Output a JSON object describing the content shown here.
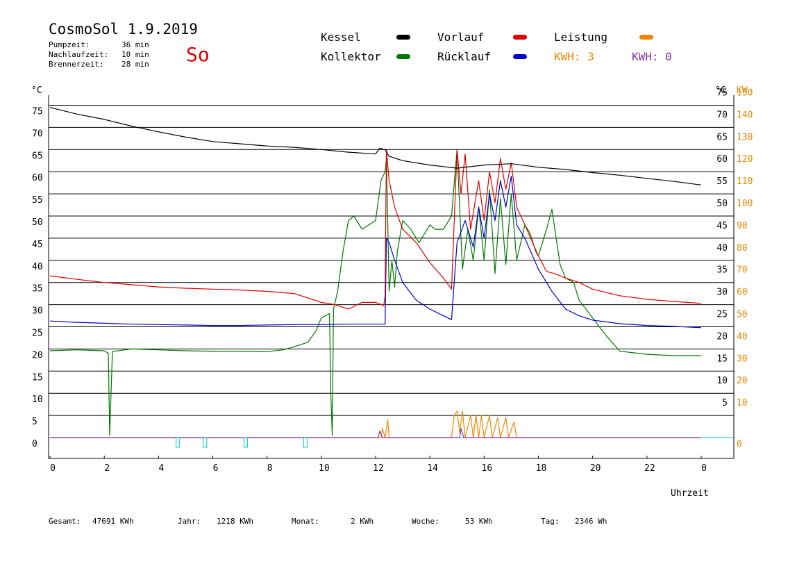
{
  "header": {
    "title": "CosmoSol 1.9.2019",
    "day": "So",
    "stats": [
      {
        "label": "Pumpzeit:",
        "value": "36 min"
      },
      {
        "label": "Nachlaufzeit:",
        "value": "10 min"
      },
      {
        "label": "Brennerzeit:",
        "value": "28 min"
      }
    ]
  },
  "legend": {
    "kessel": "Kessel",
    "kollektor": "Kollektor",
    "vorlauf": "Vorlauf",
    "ruecklauf": "Rücklauf",
    "leistung": "Leistung",
    "kwh1": "KWH: 3",
    "kwh2": "KWH: 0"
  },
  "footer": {
    "gesamt_label": "Gesamt:",
    "gesamt_value": "47691 KWh",
    "jahr_label": "Jahr:",
    "jahr_value": "1218 KWh",
    "monat_label": "Monat:",
    "monat_value": "2 KWh",
    "woche_label": "Woche:",
    "woche_value": "53 KWh",
    "tag_label": "Tag:",
    "tag_value": "2346 Wh"
  },
  "colors": {
    "kessel": "#000000",
    "kollektor": "#007700",
    "vorlauf": "#dd0000",
    "ruecklauf": "#0000cc",
    "leistung": "#ee8800",
    "kwh2": "#8833aa",
    "baseline": "#00cccc"
  },
  "chart_data": {
    "type": "line",
    "xlabel": "Uhrzeit",
    "ylabel_left": "°C",
    "ylabel_right_c": "°C",
    "ylabel_right_kw": "KW",
    "xlim": [
      0,
      24
    ],
    "ylim": [
      -5,
      80
    ],
    "x_ticks": [
      "0",
      "2",
      "4",
      "6",
      "8",
      "10",
      "12",
      "14",
      "16",
      "18",
      "20",
      "22",
      "0"
    ],
    "y_ticks_left": [
      "0",
      "5",
      "10",
      "15",
      "20",
      "25",
      "30",
      "35",
      "40",
      "45",
      "50",
      "55",
      "60",
      "65",
      "70",
      "75"
    ],
    "y_ticks_right_c": [
      "5",
      "10",
      "15",
      "20",
      "25",
      "30",
      "35",
      "40",
      "45",
      "50",
      "55",
      "60",
      "65",
      "70",
      "75"
    ],
    "y_ticks_right_kw": [
      "0",
      "10",
      "20",
      "30",
      "40",
      "50",
      "60",
      "70",
      "80",
      "90",
      "100",
      "110",
      "120",
      "130",
      "140",
      "150"
    ],
    "series": [
      {
        "name": "Kessel",
        "points": [
          [
            0,
            74.5
          ],
          [
            1,
            73
          ],
          [
            2,
            71.8
          ],
          [
            3,
            70.3
          ],
          [
            4,
            69
          ],
          [
            5,
            67.8
          ],
          [
            6,
            66.8
          ],
          [
            7,
            66.3
          ],
          [
            8,
            65.8
          ],
          [
            9,
            65.5
          ],
          [
            10,
            65
          ],
          [
            11,
            64.4
          ],
          [
            12,
            64
          ],
          [
            12.15,
            65.3
          ],
          [
            12.35,
            65
          ],
          [
            12.5,
            63.5
          ],
          [
            13,
            62.5
          ],
          [
            14,
            61.5
          ],
          [
            15,
            60.8
          ],
          [
            16,
            61.5
          ],
          [
            17,
            61.8
          ],
          [
            18,
            61
          ],
          [
            19,
            60.5
          ],
          [
            20,
            59.8
          ],
          [
            21,
            59.2
          ],
          [
            22,
            58.5
          ],
          [
            23,
            57.8
          ],
          [
            24,
            57
          ]
        ]
      },
      {
        "name": "Kollektor",
        "points": [
          [
            0,
            19.6
          ],
          [
            1,
            19.8
          ],
          [
            2,
            19.6
          ],
          [
            2.15,
            19
          ],
          [
            2.2,
            0.5
          ],
          [
            2.3,
            19.4
          ],
          [
            3,
            20
          ],
          [
            4,
            19.8
          ],
          [
            5,
            19.6
          ],
          [
            6,
            19.5
          ],
          [
            7,
            19.5
          ],
          [
            8,
            19.4
          ],
          [
            8.6,
            19.8
          ],
          [
            9,
            20.5
          ],
          [
            9.5,
            21.5
          ],
          [
            9.8,
            24
          ],
          [
            10,
            27
          ],
          [
            10.3,
            28
          ],
          [
            10.35,
            10
          ],
          [
            10.4,
            0.5
          ],
          [
            10.45,
            29
          ],
          [
            10.6,
            33
          ],
          [
            10.8,
            42
          ],
          [
            11,
            49
          ],
          [
            11.2,
            50
          ],
          [
            11.5,
            47
          ],
          [
            12,
            49
          ],
          [
            12.2,
            58
          ],
          [
            12.35,
            60
          ],
          [
            12.4,
            63
          ],
          [
            12.45,
            48
          ],
          [
            12.5,
            33
          ],
          [
            12.6,
            40
          ],
          [
            12.7,
            34
          ],
          [
            12.8,
            42
          ],
          [
            13,
            49
          ],
          [
            13.3,
            47
          ],
          [
            13.6,
            44
          ],
          [
            14,
            48
          ],
          [
            14.2,
            47
          ],
          [
            14.5,
            47
          ],
          [
            14.8,
            50
          ],
          [
            15,
            65
          ],
          [
            15.2,
            38
          ],
          [
            15.4,
            47
          ],
          [
            15.6,
            40
          ],
          [
            15.8,
            52
          ],
          [
            16,
            40
          ],
          [
            16.2,
            56
          ],
          [
            16.4,
            37
          ],
          [
            16.6,
            54
          ],
          [
            16.8,
            39
          ],
          [
            17,
            55
          ],
          [
            17.2,
            40
          ],
          [
            17.5,
            48
          ],
          [
            17.7,
            46
          ],
          [
            17.9,
            42
          ],
          [
            18,
            41
          ],
          [
            18.3,
            47
          ],
          [
            18.5,
            51.5
          ],
          [
            18.8,
            39
          ],
          [
            19,
            36
          ],
          [
            19.3,
            35
          ],
          [
            19.5,
            31
          ],
          [
            20,
            27
          ],
          [
            20.5,
            23
          ],
          [
            21,
            19.5
          ],
          [
            22,
            18.8
          ],
          [
            23,
            18.5
          ],
          [
            24,
            18.5
          ]
        ]
      },
      {
        "name": "Vorlauf",
        "points": [
          [
            0,
            36.5
          ],
          [
            1,
            35.7
          ],
          [
            2,
            35
          ],
          [
            3,
            34.5
          ],
          [
            4,
            34
          ],
          [
            5,
            33.7
          ],
          [
            6,
            33.5
          ],
          [
            7,
            33.3
          ],
          [
            8,
            33
          ],
          [
            9,
            32.5
          ],
          [
            9.5,
            31.5
          ],
          [
            10,
            30.5
          ],
          [
            10.5,
            30
          ],
          [
            11,
            29
          ],
          [
            11.5,
            30.5
          ],
          [
            12,
            30.5
          ],
          [
            12.3,
            29.8
          ],
          [
            12.35,
            32
          ],
          [
            12.4,
            65
          ],
          [
            12.5,
            58
          ],
          [
            12.7,
            52
          ],
          [
            13,
            47
          ],
          [
            13.5,
            44
          ],
          [
            14,
            39.5
          ],
          [
            14.5,
            36
          ],
          [
            14.8,
            33.5
          ],
          [
            15,
            65
          ],
          [
            15.15,
            55
          ],
          [
            15.3,
            64
          ],
          [
            15.5,
            47
          ],
          [
            15.8,
            58
          ],
          [
            16,
            49
          ],
          [
            16.2,
            60
          ],
          [
            16.4,
            53
          ],
          [
            16.6,
            63
          ],
          [
            16.8,
            56
          ],
          [
            17,
            62
          ],
          [
            17.2,
            52
          ],
          [
            17.5,
            48
          ],
          [
            18,
            41
          ],
          [
            18.3,
            37.5
          ],
          [
            18.6,
            37
          ],
          [
            19,
            36
          ],
          [
            19.5,
            35
          ],
          [
            20,
            33.5
          ],
          [
            21,
            32
          ],
          [
            22,
            31.2
          ],
          [
            23,
            30.7
          ],
          [
            24,
            30.3
          ]
        ]
      },
      {
        "name": "Rücklauf",
        "points": [
          [
            0,
            26.3
          ],
          [
            1,
            26
          ],
          [
            2,
            25.8
          ],
          [
            3,
            25.6
          ],
          [
            4,
            25.5
          ],
          [
            5,
            25.4
          ],
          [
            6,
            25.3
          ],
          [
            7,
            25.3
          ],
          [
            8,
            25.4
          ],
          [
            9,
            25.5
          ],
          [
            10,
            25.5
          ],
          [
            11,
            25.6
          ],
          [
            12,
            25.6
          ],
          [
            12.35,
            25.6
          ],
          [
            12.4,
            45
          ],
          [
            12.5,
            44
          ],
          [
            12.7,
            40
          ],
          [
            13,
            35
          ],
          [
            13.5,
            31
          ],
          [
            14,
            29
          ],
          [
            14.5,
            27.5
          ],
          [
            14.8,
            26.6
          ],
          [
            15,
            44
          ],
          [
            15.3,
            49
          ],
          [
            15.6,
            43
          ],
          [
            15.8,
            52
          ],
          [
            16,
            45
          ],
          [
            16.2,
            55
          ],
          [
            16.4,
            49
          ],
          [
            16.6,
            58
          ],
          [
            16.8,
            52
          ],
          [
            17,
            59
          ],
          [
            17.2,
            48
          ],
          [
            17.5,
            45
          ],
          [
            18,
            38
          ],
          [
            18.5,
            33
          ],
          [
            19,
            29
          ],
          [
            19.5,
            27.5
          ],
          [
            20,
            26.5
          ],
          [
            21,
            25.7
          ],
          [
            22,
            25.3
          ],
          [
            23,
            25.1
          ],
          [
            24,
            24.8
          ]
        ]
      },
      {
        "name": "Leistung",
        "points": [
          [
            0,
            0
          ],
          [
            12.2,
            0
          ],
          [
            12.25,
            2
          ],
          [
            12.35,
            0
          ],
          [
            12.45,
            4
          ],
          [
            12.5,
            0
          ],
          [
            14.8,
            0
          ],
          [
            14.9,
            5
          ],
          [
            15,
            6
          ],
          [
            15.1,
            1
          ],
          [
            15.2,
            6
          ],
          [
            15.3,
            0
          ],
          [
            15.5,
            5
          ],
          [
            15.6,
            0
          ],
          [
            15.7,
            5
          ],
          [
            15.8,
            0
          ],
          [
            15.9,
            5
          ],
          [
            16,
            0
          ],
          [
            16.2,
            5
          ],
          [
            16.3,
            0
          ],
          [
            16.5,
            4.5
          ],
          [
            16.6,
            0
          ],
          [
            16.8,
            4.5
          ],
          [
            16.9,
            0
          ],
          [
            17.1,
            3.5
          ],
          [
            17.2,
            0
          ],
          [
            24,
            0
          ]
        ]
      },
      {
        "name": "KWH: 0",
        "points": [
          [
            0,
            0
          ],
          [
            12.1,
            0
          ],
          [
            12.15,
            1.5
          ],
          [
            12.25,
            0
          ],
          [
            15.1,
            0
          ],
          [
            15.15,
            2
          ],
          [
            15.25,
            0
          ],
          [
            24,
            0
          ]
        ]
      }
    ],
    "baseline": {
      "value": 0,
      "markers": [
        4.7,
        5.7,
        7.2,
        9.4
      ]
    }
  }
}
